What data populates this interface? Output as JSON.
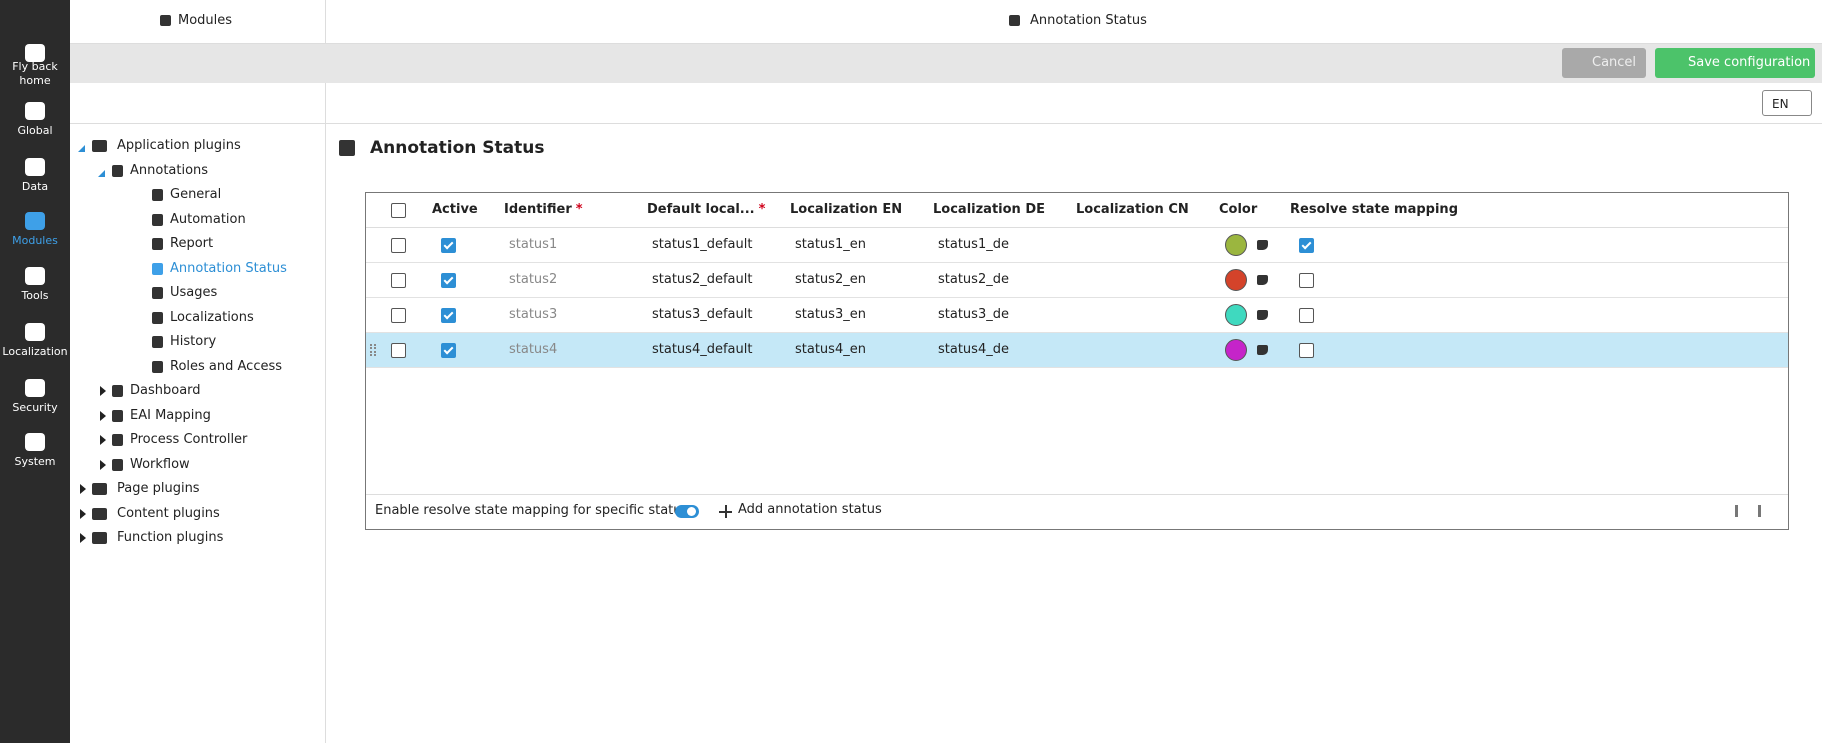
{
  "sidebar": {
    "items": [
      {
        "label": "Fly back home"
      },
      {
        "label": "Global"
      },
      {
        "label": "Data"
      },
      {
        "label": "Modules",
        "active": true
      },
      {
        "label": "Tools"
      },
      {
        "label": "Localization"
      },
      {
        "label": "Security"
      },
      {
        "label": "System"
      }
    ]
  },
  "header": {
    "left_title": "Modules",
    "right_title": "Annotation Status"
  },
  "toolbar": {
    "cancel": "Cancel",
    "save": "Save configuration",
    "language": "EN"
  },
  "tree": [
    {
      "label": "Application plugins",
      "level": 0,
      "expanded": true
    },
    {
      "label": "Annotations",
      "level": 1,
      "expanded": true
    },
    {
      "label": "General",
      "level": 2
    },
    {
      "label": "Automation",
      "level": 2
    },
    {
      "label": "Report",
      "level": 2
    },
    {
      "label": "Annotation Status",
      "level": 2,
      "selected": true
    },
    {
      "label": "Usages",
      "level": 2
    },
    {
      "label": "Localizations",
      "level": 2
    },
    {
      "label": "History",
      "level": 2
    },
    {
      "label": "Roles and Access",
      "level": 2
    },
    {
      "label": "Dashboard",
      "level": 1,
      "expanded": false
    },
    {
      "label": "EAI Mapping",
      "level": 1,
      "expanded": false
    },
    {
      "label": "Process Controller",
      "level": 1,
      "expanded": false
    },
    {
      "label": "Workflow",
      "level": 1,
      "expanded": false
    },
    {
      "label": "Page plugins",
      "level": 0,
      "expanded": false
    },
    {
      "label": "Content plugins",
      "level": 0,
      "expanded": false
    },
    {
      "label": "Function plugins",
      "level": 0,
      "expanded": false
    }
  ],
  "page_title": "Annotation Status",
  "table": {
    "columns": [
      {
        "label": "Active"
      },
      {
        "label": "Identifier",
        "marker": "*"
      },
      {
        "label": "Default local...",
        "marker": "*"
      },
      {
        "label": "Localization EN"
      },
      {
        "label": "Localization DE"
      },
      {
        "label": "Localization CN"
      },
      {
        "label": "Color"
      },
      {
        "label": "Resolve state mapping"
      }
    ],
    "rows": [
      {
        "active": true,
        "identifier": "status1",
        "default": "status1_default",
        "en": "status1_en",
        "de": "status1_de",
        "color": "#9bb63f",
        "resolve": true
      },
      {
        "active": true,
        "identifier": "status2",
        "default": "status2_default",
        "en": "status2_en",
        "de": "status2_de",
        "color": "#d4432a",
        "resolve": false
      },
      {
        "active": true,
        "identifier": "status3",
        "default": "status3_default",
        "en": "status3_en",
        "de": "status3_de",
        "color": "#3fd9bf",
        "resolve": false
      },
      {
        "active": true,
        "identifier": "status4",
        "default": "status4_default",
        "en": "status4_en",
        "de": "status4_de",
        "color": "#c524c9",
        "resolve": false,
        "highlighted": true
      }
    ],
    "footer": {
      "toggle_label": "Enable resolve state mapping for specific status",
      "toggle_on": true,
      "add_label": "Add annotation status"
    }
  }
}
